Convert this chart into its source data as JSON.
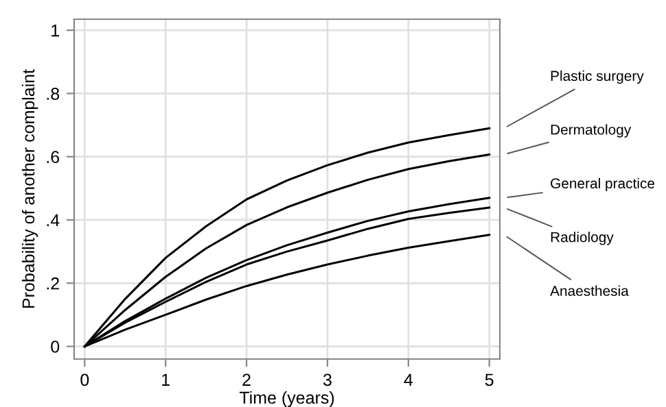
{
  "chart_data": {
    "type": "line",
    "xlabel": "Time (years)",
    "ylabel": "Probability of another complaint",
    "x": [
      0,
      0.5,
      1,
      1.5,
      2,
      2.5,
      3,
      3.5,
      4,
      4.5,
      5
    ],
    "series": [
      {
        "name": "Plastic surgery",
        "color": "#000000",
        "values": [
          0,
          0.15,
          0.28,
          0.38,
          0.465,
          0.525,
          0.573,
          0.613,
          0.645,
          0.668,
          0.69
        ]
      },
      {
        "name": "Dermatology",
        "color": "#000000",
        "values": [
          0,
          0.115,
          0.22,
          0.31,
          0.384,
          0.44,
          0.486,
          0.527,
          0.561,
          0.586,
          0.607
        ]
      },
      {
        "name": "General practice",
        "color": "#000000",
        "values": [
          0,
          0.08,
          0.151,
          0.217,
          0.273,
          0.32,
          0.36,
          0.397,
          0.427,
          0.45,
          0.47
        ]
      },
      {
        "name": "Radiology",
        "color": "#000000",
        "values": [
          0,
          0.075,
          0.141,
          0.204,
          0.259,
          0.3,
          0.335,
          0.372,
          0.403,
          0.422,
          0.439
        ]
      },
      {
        "name": "Anaesthesia",
        "color": "#000000",
        "values": [
          0,
          0.053,
          0.1,
          0.148,
          0.191,
          0.227,
          0.259,
          0.287,
          0.312,
          0.333,
          0.353
        ]
      }
    ],
    "xlim": [
      -0.13,
      5.13
    ],
    "ylim": [
      -0.04,
      1.035
    ],
    "xticks": [
      0,
      1,
      2,
      3,
      4,
      5
    ],
    "yticks": [
      0,
      {
        "value": 0.2,
        "label": ".2"
      },
      {
        "value": 0.4,
        "label": ".4"
      },
      {
        "value": 0.6,
        "label": ".6"
      },
      {
        "value": 0.8,
        "label": ".8"
      },
      1
    ],
    "grid": true,
    "legend": false,
    "marker": "none",
    "line_style": "solid"
  }
}
